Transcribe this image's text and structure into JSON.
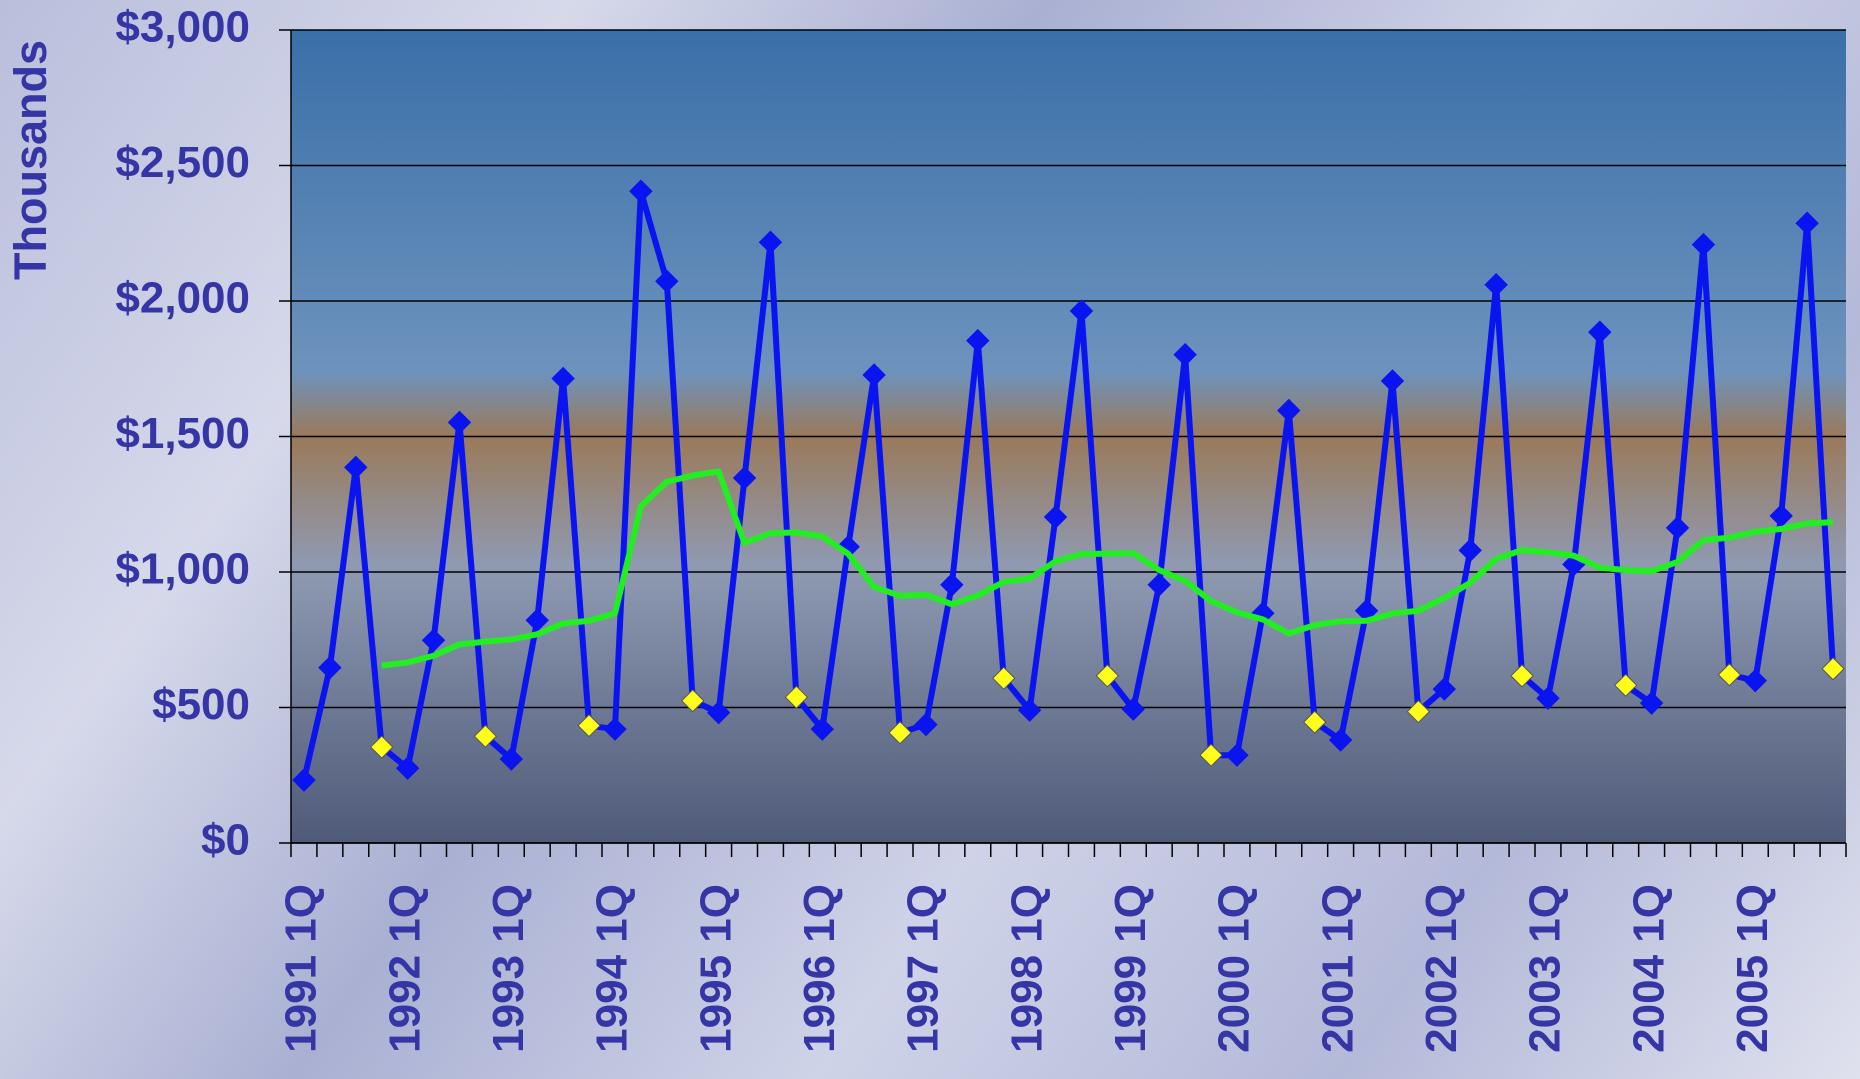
{
  "chart_data": {
    "type": "line",
    "ylabel": "Thousands",
    "categories": [
      "1991 1Q",
      null,
      null,
      null,
      "1992 1Q",
      null,
      null,
      null,
      "1993 1Q",
      null,
      null,
      null,
      "1994 1Q",
      null,
      null,
      null,
      "1995 1Q",
      null,
      null,
      null,
      "1996 1Q",
      null,
      null,
      null,
      "1997 1Q",
      null,
      null,
      null,
      "1998 1Q",
      null,
      null,
      null,
      "1999 1Q",
      null,
      null,
      null,
      "2000 1Q",
      null,
      null,
      null,
      "2001 1Q",
      null,
      null,
      null,
      "2002 1Q",
      null,
      null,
      null,
      "2003 1Q",
      null,
      null,
      null,
      "2004 1Q",
      null,
      null,
      null,
      "2005 1Q",
      null,
      null,
      null
    ],
    "series": [
      {
        "color": "#0a14f0",
        "marker_colors": [
          "#0a14f0",
          "#0a14f0",
          "#0a14f0",
          "#ffff1a",
          "#0a14f0",
          "#0a14f0",
          "#0a14f0",
          "#ffff1a",
          "#0a14f0",
          "#0a14f0",
          "#0a14f0",
          "#ffff1a",
          "#0a14f0",
          "#0a14f0",
          "#0a14f0",
          "#ffff1a",
          "#0a14f0",
          "#0a14f0",
          "#0a14f0",
          "#ffff1a",
          "#0a14f0",
          "#0a14f0",
          "#0a14f0",
          "#ffff1a",
          "#0a14f0",
          "#0a14f0",
          "#0a14f0",
          "#ffff1a",
          "#0a14f0",
          "#0a14f0",
          "#0a14f0",
          "#ffff1a",
          "#0a14f0",
          "#0a14f0",
          "#0a14f0",
          "#ffff1a",
          "#0a14f0",
          "#0a14f0",
          "#0a14f0",
          "#ffff1a",
          "#0a14f0",
          "#0a14f0",
          "#0a14f0",
          "#ffff1a",
          "#0a14f0",
          "#0a14f0",
          "#0a14f0",
          "#ffff1a",
          "#0a14f0",
          "#0a14f0",
          "#0a14f0",
          "#ffff1a",
          "#0a14f0",
          "#0a14f0",
          "#0a14f0",
          "#ffff1a",
          "#0a14f0",
          "#0a14f0",
          "#0a14f0",
          "#ffff1a"
        ],
        "values": [
          232,
          647,
          1386,
          354,
          276,
          748,
          1552,
          394,
          310,
          822,
          1714,
          433,
          420,
          2405,
          2073,
          525,
          481,
          1347,
          2217,
          538,
          420,
          1093,
          1727,
          407,
          437,
          953,
          1854,
          608,
          490,
          1203,
          1963,
          617,
          494,
          953,
          1802,
          324,
          324,
          848,
          1596,
          446,
          380,
          857,
          1705,
          485,
          568,
          1080,
          2060,
          617,
          534,
          1028,
          1885,
          582,
          516,
          1163,
          2208,
          621,
          599,
          1207,
          2287,
          643
        ]
      },
      {
        "color": "#22ee22",
        "values": [
          null,
          null,
          null,
          655,
          666,
          691,
          733,
          743,
          751,
          770,
          810,
          820,
          847,
          1243,
          1333,
          1356,
          1371,
          1107,
          1143,
          1146,
          1131,
          1067,
          945,
          912,
          916,
          881,
          913,
          963,
          976,
          1039,
          1066,
          1068,
          1069,
          1007,
          967,
          893,
          851,
          825,
          773,
          804,
          818,
          820,
          847,
          857,
          904,
          960,
          1048,
          1081,
          1073,
          1060,
          1016,
          1007,
          1003,
          1037,
          1117,
          1127,
          1148,
          1159,
          1179,
          1184
        ]
      }
    ],
    "ylim": [
      0,
      3000
    ],
    "yticks": [
      {
        "value": 0,
        "label": "$0"
      },
      {
        "value": 500,
        "label": "$500"
      },
      {
        "value": 1000,
        "label": "$1,000"
      },
      {
        "value": 1500,
        "label": "$1,500"
      },
      {
        "value": 2000,
        "label": "$2,000"
      },
      {
        "value": 2500,
        "label": "$2,500"
      },
      {
        "value": 3000,
        "label": "$3,000"
      }
    ],
    "grid": true
  }
}
